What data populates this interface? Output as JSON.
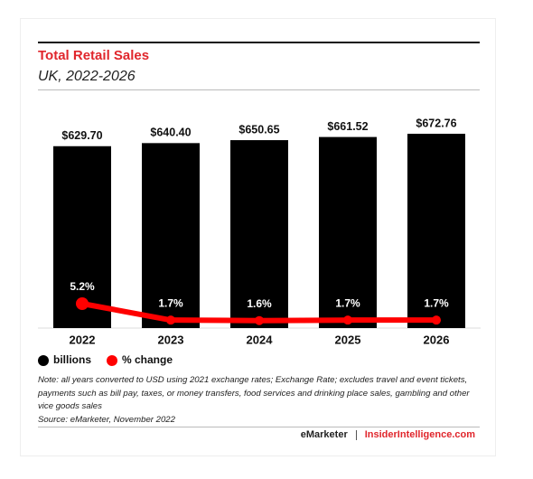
{
  "chart_data": {
    "type": "bar",
    "title": "Total Retail Sales",
    "subtitle": "UK, 2022-2026",
    "categories": [
      "2022",
      "2023",
      "2024",
      "2025",
      "2026"
    ],
    "series": [
      {
        "name": "billions",
        "color": "#000000",
        "type": "bar",
        "values": [
          629.7,
          640.4,
          650.65,
          661.52,
          672.76
        ],
        "value_labels": [
          "$629.70",
          "$640.40",
          "$650.65",
          "$661.52",
          "$672.76"
        ]
      },
      {
        "name": "% change",
        "color": "#ff0000",
        "type": "line",
        "values": [
          5.2,
          1.7,
          1.6,
          1.7,
          1.7
        ],
        "value_labels": [
          "5.2%",
          "1.7%",
          "1.6%",
          "1.7%",
          "1.7%"
        ]
      }
    ],
    "note": "Note: all years converted to USD using 2021 exchange rates; Exchange Rate; excludes travel and event tickets, payments such as bill pay, taxes, or money transfers, food services and drinking place sales, gambling and other vice goods sales",
    "source": "Source: eMarketer, November 2022",
    "footer": [
      "eMarketer",
      "InsiderIntelligence.com"
    ]
  }
}
